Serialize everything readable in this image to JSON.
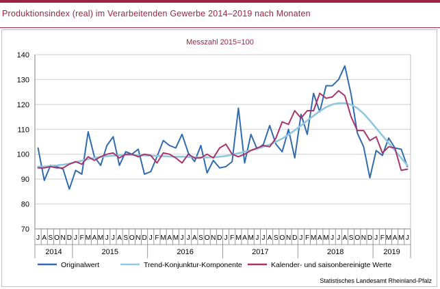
{
  "page": {
    "title": "Produktionsindex (real) im Verarbeitenden Gewerbe 2014–2019 nach Monaten",
    "source": "Statistisches Landesamt Rheinland-Pfalz"
  },
  "chart_data": {
    "type": "line",
    "title": "Produktionsindex (real) im Verarbeitenden Gewerbe 2014–2019 nach Monaten",
    "subtitle": "Messzahl 2015=100",
    "ylim": [
      70,
      140
    ],
    "yticks": [
      70,
      80,
      90,
      100,
      110,
      120,
      130,
      140
    ],
    "grid": true,
    "legend_position": "bottom",
    "months": [
      "J",
      "A",
      "S",
      "O",
      "N",
      "D",
      "J",
      "F",
      "M",
      "A",
      "M",
      "J",
      "J",
      "A",
      "S",
      "O",
      "N",
      "D",
      "J",
      "F",
      "M",
      "A",
      "M",
      "J",
      "J",
      "A",
      "S",
      "O",
      "N",
      "D",
      "J",
      "F",
      "M",
      "A",
      "M",
      "J",
      "J",
      "A",
      "S",
      "O",
      "N",
      "D",
      "J",
      "F",
      "M",
      "A",
      "M",
      "J",
      "J",
      "A",
      "S",
      "O",
      "N",
      "D",
      "J",
      "F",
      "M",
      "A",
      "M",
      "J"
    ],
    "years": [
      {
        "label": "2014",
        "count": 6
      },
      {
        "label": "2015",
        "count": 12
      },
      {
        "label": "2016",
        "count": 12
      },
      {
        "label": "2017",
        "count": 12
      },
      {
        "label": "2018",
        "count": 12
      },
      {
        "label": "2019",
        "count": 6
      }
    ],
    "series": [
      {
        "name": "Originalwert",
        "color": "#2e6bb0",
        "values": [
          102.5,
          89.5,
          95.5,
          95,
          94,
          86,
          93.5,
          92,
          109,
          99,
          95.5,
          103.5,
          107,
          95.5,
          101,
          100,
          102,
          92,
          93,
          99,
          105.5,
          103.5,
          102.5,
          108,
          100.5,
          97,
          103.5,
          92.5,
          97.5,
          94.5,
          95,
          97,
          118.5,
          96.5,
          108,
          102,
          104,
          111.5,
          104,
          101,
          110,
          98.5,
          116,
          108,
          124.5,
          117,
          127.5,
          127.5,
          130,
          135.5,
          124,
          108.5,
          103,
          90.5,
          101.5,
          99.5,
          106.5,
          102.5,
          102,
          95
        ]
      },
      {
        "name": "Trend-Konjunktur-Komponente",
        "color": "#8fc6e0",
        "values": [
          95,
          95,
          95.3,
          95.5,
          95.8,
          96.2,
          96.8,
          97.4,
          98,
          98.5,
          98.9,
          99.2,
          99.4,
          99.6,
          99.7,
          99.7,
          99.6,
          99.5,
          99.4,
          99.3,
          99.2,
          99.1,
          99,
          99,
          98.9,
          98.8,
          98.7,
          98.7,
          98.8,
          99,
          99.3,
          99.8,
          100.4,
          101,
          101.6,
          102.2,
          103,
          103.9,
          105,
          106.3,
          107.8,
          109.6,
          111.5,
          113.5,
          115.5,
          117.3,
          118.9,
          120,
          120.5,
          120.5,
          119.9,
          118.5,
          116.3,
          113.5,
          110.5,
          107.5,
          104.5,
          101.5,
          98.5,
          95.5
        ]
      },
      {
        "name": "Kalender- und saisonbereinigte Werte",
        "color": "#a8336b",
        "values": [
          94.5,
          94.5,
          95,
          94.5,
          94.5,
          96,
          97,
          96,
          99,
          97.5,
          99,
          100,
          100.5,
          98.5,
          100,
          100,
          99,
          100,
          99.5,
          96.5,
          100.5,
          100,
          98.5,
          96.5,
          100,
          98.5,
          98.5,
          100,
          98.5,
          102.5,
          104,
          100,
          99,
          100,
          101.5,
          102.5,
          103.5,
          103,
          106.5,
          113,
          112,
          117.5,
          114.5,
          117.5,
          117.5,
          124.5,
          122.5,
          123,
          125.5,
          123.5,
          115,
          109.5,
          109.5,
          105.5,
          107,
          100.5,
          103,
          102.5,
          93.5,
          94
        ]
      }
    ]
  }
}
